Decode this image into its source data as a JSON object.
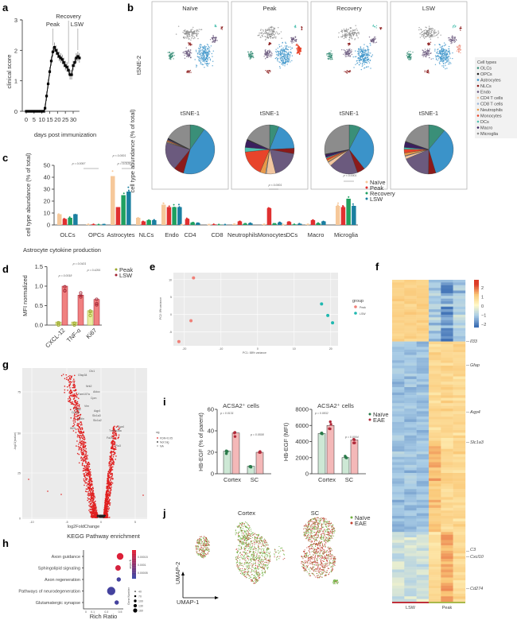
{
  "panel_labels": {
    "a": "a",
    "b": "b",
    "c": "c",
    "d": "d",
    "e": "e",
    "f": "f",
    "g": "g",
    "h": "h",
    "i": "i",
    "j": "j"
  },
  "colors": {
    "OLCs": "#3a8f78",
    "OPCs": "#222222",
    "Astrocytes": "#3b93c9",
    "NLCs": "#8b1a1a",
    "Endo": "#6b5a7e",
    "CD4 T cells": "#f2c6a0",
    "CD8 T cells": "#9fb8d8",
    "Neutrophils": "#e89a4a",
    "Monocytes": "#e8442a",
    "DCs": "#4fc0b0",
    "Macro": "#3b1f5e",
    "Microglia": "#8c8c8c",
    "naive": "#f6c89a",
    "peak": "#e03030",
    "recovery": "#1fa060",
    "lsw": "#1a7fa0"
  },
  "chart_data": [
    {
      "id": "a",
      "type": "line",
      "xlabel": "days post immunization",
      "ylabel": "clinical score",
      "xticks": [
        0,
        5,
        10,
        15,
        20,
        25,
        30
      ],
      "yticks": [
        0,
        1,
        2,
        3
      ],
      "xlim": [
        0,
        34
      ],
      "ylim": [
        0,
        3
      ],
      "annotations": [
        {
          "label": "Peak",
          "x": 17
        },
        {
          "label": "Recovery",
          "x": 27
        },
        {
          "label": "LSW",
          "x": 33
        }
      ],
      "x": [
        0,
        1,
        2,
        3,
        4,
        5,
        6,
        7,
        8,
        9,
        10,
        11,
        12,
        13,
        14,
        15,
        16,
        17,
        18,
        19,
        20,
        21,
        22,
        23,
        24,
        25,
        26,
        27,
        28,
        29,
        30,
        31,
        32,
        33,
        34
      ],
      "y": [
        0,
        0,
        0,
        0,
        0,
        0,
        0,
        0,
        0,
        0,
        0,
        0,
        0.1,
        0.5,
        0.9,
        1.3,
        1.65,
        1.95,
        2.1,
        2.0,
        1.9,
        1.8,
        1.75,
        1.7,
        1.6,
        1.5,
        1.45,
        1.35,
        1.2,
        1.2,
        1.5,
        1.6,
        1.75,
        1.8,
        1.75
      ]
    },
    {
      "id": "b",
      "type": "pie",
      "groups": [
        "Naïve",
        "Peak",
        "Recovery",
        "LSW"
      ],
      "xlabel": "tSNE-1",
      "ylabel": "tSNE-2",
      "pie_label": "cell type abundance (% of total)",
      "legend_title": "Cell types",
      "legend": [
        "OLCs",
        "OPCs",
        "Astrocytes",
        "NLCs",
        "Endo",
        "CD4 T cells",
        "CD8 T cells",
        "Neutrophils",
        "Monocytes",
        "DCs",
        "Macro",
        "Microglia"
      ],
      "slices": [
        {
          "OLCs": 9,
          "OPCs": 0.5,
          "Astrocytes": 41,
          "NLCs": 6,
          "Endo": 17,
          "CD4 T cells": 0.3,
          "CD8 T cells": 0.3,
          "Neutrophils": 0.5,
          "Monocytes": 0.5,
          "DCs": 0.3,
          "Macro": 0.5,
          "Microglia": 16
        },
        {
          "OLCs": 5,
          "OPCs": 0.5,
          "Astrocytes": 15,
          "NLCs": 3,
          "Endo": 15,
          "CD4 T cells": 5,
          "CD8 T cells": 0.5,
          "Neutrophils": 3,
          "Monocytes": 14,
          "DCs": 2.5,
          "Macro": 4,
          "Microglia": 15
        },
        {
          "OLCs": 6,
          "OPCs": 0.3,
          "Astrocytes": 25,
          "NLCs": 4,
          "Endo": 15,
          "CD4 T cells": 2,
          "CD8 T cells": 0.3,
          "Neutrophils": 1,
          "Monocytes": 1,
          "DCs": 0.5,
          "Macro": 1.5,
          "Microglia": 22
        },
        {
          "OLCs": 9,
          "OPCs": 0.3,
          "Astrocytes": 28,
          "NLCs": 4,
          "Endo": 15,
          "CD4 T cells": 1.5,
          "CD8 T cells": 0.3,
          "Neutrophils": 1.5,
          "Monocytes": 2,
          "DCs": 1,
          "Macro": 3,
          "Microglia": 16
        }
      ]
    },
    {
      "id": "c",
      "type": "bar",
      "ylabel": "cell type abundance (% of total)",
      "ylim": [
        0,
        50
      ],
      "yticks": [
        0,
        10,
        20,
        30,
        40,
        50
      ],
      "categories": [
        "OLCs",
        "OPCs",
        "Astrocytes",
        "NLCs",
        "Endo",
        "CD4",
        "CD8",
        "Neutrophils",
        "Monocytes",
        "DCs",
        "Macro",
        "Microglia"
      ],
      "series": [
        {
          "name": "Naïve",
          "values": [
            9,
            0.5,
            41,
            6,
            17,
            0.3,
            0.3,
            0.5,
            0.5,
            0.3,
            0.5,
            16
          ]
        },
        {
          "name": "Peak",
          "values": [
            5,
            0.5,
            15,
            3,
            15,
            5,
            0.5,
            3,
            14,
            2.5,
            4,
            15
          ]
        },
        {
          "name": "Recovery",
          "values": [
            6,
            0.3,
            25,
            4,
            15,
            2,
            0.3,
            1,
            1,
            0.5,
            1.5,
            22
          ]
        },
        {
          "name": "LSW",
          "values": [
            9,
            0.3,
            28,
            4,
            15,
            1.5,
            0.3,
            1.5,
            2,
            1,
            3,
            16
          ]
        }
      ],
      "annotations": [
        "p = 0.0097",
        "p < 0.0001",
        "p = 0.0135",
        "p < 0.0001",
        "p < 0.0001"
      ]
    },
    {
      "id": "d",
      "type": "bar",
      "title": "Astrocyte cytokine production",
      "ylabel": "MFI normalized",
      "ylim": [
        0,
        1.5
      ],
      "yticks": [
        "0.0",
        "0.5",
        "1.0",
        "1.5"
      ],
      "categories": [
        "CXCL-12",
        "TNF-α",
        "Ki67"
      ],
      "series": [
        {
          "name": "Peak",
          "values": [
            0.08,
            0.08,
            0.37
          ]
        },
        {
          "name": "LSW",
          "values": [
            1.0,
            0.77,
            0.66
          ]
        }
      ],
      "annotations": [
        "p = 0.0018",
        "p = 0.0431",
        "p = 0.4291"
      ]
    },
    {
      "id": "e",
      "type": "scatter",
      "xlabel": "PC1: 88% variance",
      "ylabel": "PC2: 8% variance",
      "xlim": [
        -23,
        22
      ],
      "ylim": [
        -9,
        12
      ],
      "xticks": [
        -20,
        -10,
        0,
        10,
        20
      ],
      "yticks": [
        -5,
        0,
        5,
        10
      ],
      "legend_title": "group",
      "series": [
        {
          "name": "Peak",
          "x": [
            -17.5,
            -18.2,
            -21.5
          ],
          "y": [
            10.5,
            -1.8,
            -7.8
          ]
        },
        {
          "name": "LSW",
          "x": [
            17.5,
            20.5,
            19.2
          ],
          "y": [
            3.0,
            -2.4,
            -0.3
          ]
        }
      ]
    },
    {
      "id": "f",
      "type": "heatmap",
      "columns_groups": [
        "LSW",
        "Peak"
      ],
      "colorbar_ticks": [
        "2",
        "1",
        "0",
        "−1",
        "−2"
      ],
      "genes": [
        "Il33",
        "Gfap",
        "Aqp4",
        "Slc1a3",
        "C3",
        "Cxcl10",
        "Cd274"
      ]
    },
    {
      "id": "g",
      "type": "scatter",
      "xlabel": "log2FoldChange",
      "ylabel": "-log10(pvalue)",
      "xticks": [
        "-10",
        "-5",
        "0",
        "5"
      ],
      "yticks": [
        "0",
        "25",
        "50",
        "75"
      ],
      "legend_title": "sig",
      "legend": [
        "FDR<0.05",
        "Not Sig",
        "NA"
      ],
      "labels": [
        "Cfc1",
        "Gfap34",
        "Nrk2",
        "Aldoc",
        "Fam107a",
        "Cpm",
        "Vim",
        "Gfap",
        "Aqp4",
        "Cd24a",
        "Slc1a3",
        "Hydin",
        "Slc1a2",
        "Ift20",
        "Eya4",
        "Tmem38a",
        "Fa2h",
        "Pla3"
      ]
    },
    {
      "id": "h",
      "type": "scatter",
      "title": "KEGG Pathway enrichment",
      "xlabel": "Rich Ratio",
      "xticks": [
        "0",
        "0.1",
        "0.3",
        "0.5"
      ],
      "colorbar_title": "q-value",
      "colorbar_ticks": [
        "0.00005",
        "0.0001",
        "0.00015"
      ],
      "size_title": "Gene Number",
      "size_ticks": [
        "40",
        "70",
        "100",
        "130",
        "160"
      ],
      "categories": [
        "Axon guidance",
        "Sphingolipid signaling",
        "Axon regeneration",
        "Pathways of neurodegeneration",
        "Glutamatergic synapse"
      ],
      "rich_ratio": [
        0.5,
        0.47,
        0.48,
        0.37,
        0.45
      ],
      "qvalue_level": [
        0.95,
        0.9,
        0.1,
        0.1,
        0.1
      ],
      "gene_number": [
        120,
        90,
        60,
        160,
        60
      ]
    },
    {
      "id": "i",
      "type": "bar",
      "groups": [
        "Naïve",
        "EAE"
      ],
      "charts": [
        {
          "title": "ACSA2⁺ cells",
          "ylabel": "HB-EGF (% of parent)",
          "yticks": [
            "0",
            "20",
            "40",
            "60"
          ],
          "ylim": [
            0,
            60
          ],
          "categories": [
            "Cortex",
            "SC"
          ],
          "naive": [
            21,
            7
          ],
          "eae": [
            38,
            20
          ],
          "annotations": [
            "p = 0.0131",
            "p = 0.0508"
          ]
        },
        {
          "title": "ACSA2⁺ cells",
          "ylabel": "HB-EGF (MFI)",
          "yticks": [
            "0",
            "2000",
            "4000",
            "6000",
            "8000"
          ],
          "ylim": [
            0,
            8000
          ],
          "categories": [
            "Cortex",
            "SC"
          ],
          "naive": [
            5000,
            2000
          ],
          "eae": [
            6000,
            4200
          ],
          "annotations": [
            "p = 0.0832",
            "p = 0.0004"
          ]
        }
      ]
    },
    {
      "id": "j",
      "type": "scatter",
      "titles": [
        "Cortex",
        "SC"
      ],
      "xlabel": "UMAP-1",
      "ylabel": "UMAP-2",
      "legend": [
        "Naïve",
        "EAE"
      ]
    }
  ]
}
